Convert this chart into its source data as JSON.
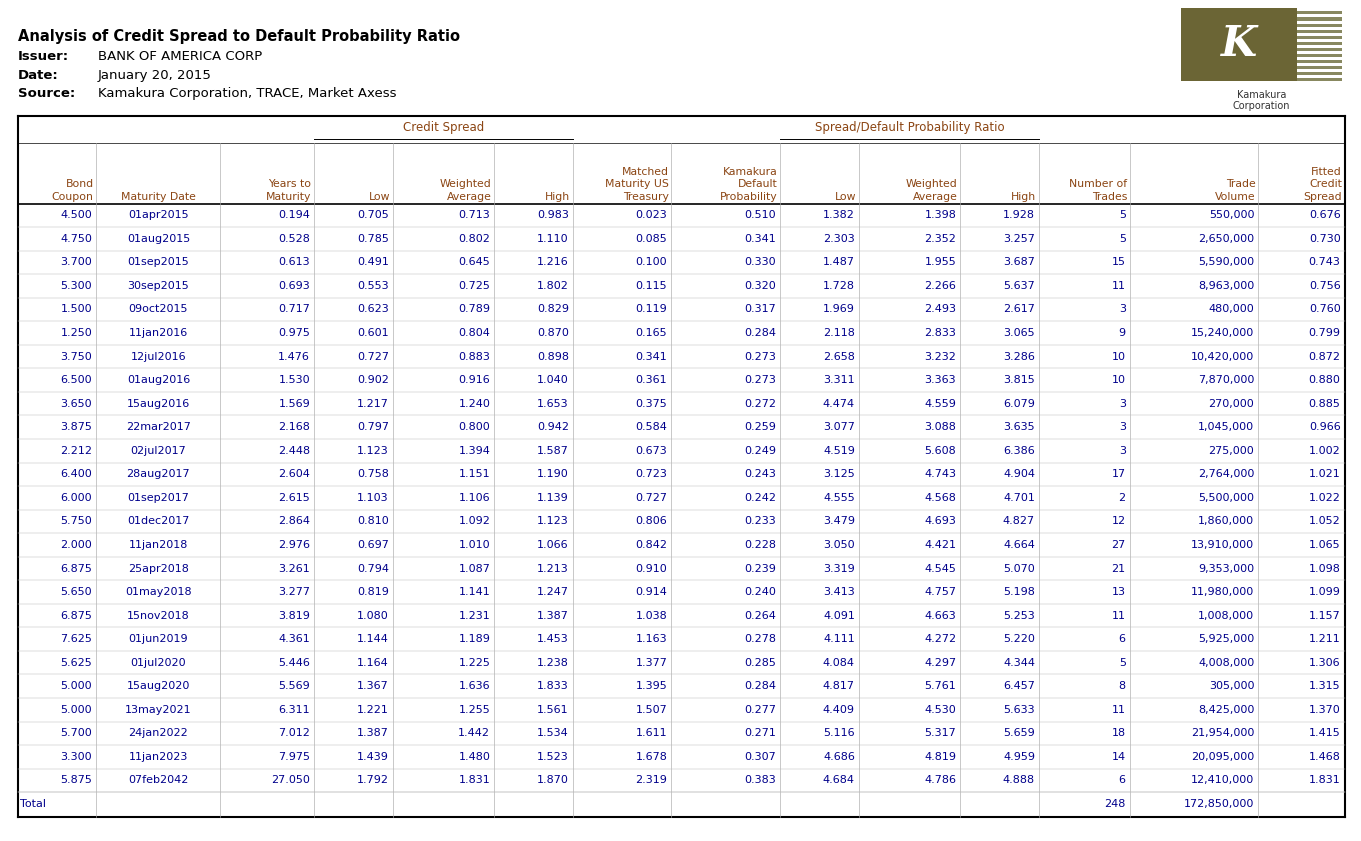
{
  "title": "Analysis of Credit Spread to Default Probability Ratio",
  "issuer_label": "Issuer:",
  "issuer_value": "BANK OF AMERICA CORP",
  "date_label": "Date:",
  "date_value": "January 20, 2015",
  "source_label": "Source:",
  "source_value": "Kamakura Corporation, TRACE, Market Axess",
  "header_group1": "Credit Spread",
  "header_group2": "Spread/Default Probability Ratio",
  "col_headers_line1": [
    "Bond",
    "",
    "Years to",
    "",
    "Weighted",
    "",
    "Matched",
    "Kamakura",
    "",
    "Weighted",
    "",
    "Number of",
    "Trade",
    "Fitted"
  ],
  "col_headers_line2": [
    "Coupon",
    "Maturity Date",
    "Maturity",
    "Low",
    "Average",
    "High",
    "Maturity US",
    "Default",
    "Low",
    "Average",
    "High",
    "Trades",
    "Volume",
    "Credit"
  ],
  "col_headers_line3": [
    "",
    "",
    "",
    "",
    "",
    "",
    "Treasury",
    "Probability",
    "",
    "",
    "",
    "",
    "",
    "Spread"
  ],
  "rows": [
    [
      "4.500",
      "01apr2015",
      "0.194",
      "0.705",
      "0.713",
      "0.983",
      "0.023",
      "0.510",
      "1.382",
      "1.398",
      "1.928",
      "5",
      "550,000",
      "0.676"
    ],
    [
      "4.750",
      "01aug2015",
      "0.528",
      "0.785",
      "0.802",
      "1.110",
      "0.085",
      "0.341",
      "2.303",
      "2.352",
      "3.257",
      "5",
      "2,650,000",
      "0.730"
    ],
    [
      "3.700",
      "01sep2015",
      "0.613",
      "0.491",
      "0.645",
      "1.216",
      "0.100",
      "0.330",
      "1.487",
      "1.955",
      "3.687",
      "15",
      "5,590,000",
      "0.743"
    ],
    [
      "5.300",
      "30sep2015",
      "0.693",
      "0.553",
      "0.725",
      "1.802",
      "0.115",
      "0.320",
      "1.728",
      "2.266",
      "5.637",
      "11",
      "8,963,000",
      "0.756"
    ],
    [
      "1.500",
      "09oct2015",
      "0.717",
      "0.623",
      "0.789",
      "0.829",
      "0.119",
      "0.317",
      "1.969",
      "2.493",
      "2.617",
      "3",
      "480,000",
      "0.760"
    ],
    [
      "1.250",
      "11jan2016",
      "0.975",
      "0.601",
      "0.804",
      "0.870",
      "0.165",
      "0.284",
      "2.118",
      "2.833",
      "3.065",
      "9",
      "15,240,000",
      "0.799"
    ],
    [
      "3.750",
      "12jul2016",
      "1.476",
      "0.727",
      "0.883",
      "0.898",
      "0.341",
      "0.273",
      "2.658",
      "3.232",
      "3.286",
      "10",
      "10,420,000",
      "0.872"
    ],
    [
      "6.500",
      "01aug2016",
      "1.530",
      "0.902",
      "0.916",
      "1.040",
      "0.361",
      "0.273",
      "3.311",
      "3.363",
      "3.815",
      "10",
      "7,870,000",
      "0.880"
    ],
    [
      "3.650",
      "15aug2016",
      "1.569",
      "1.217",
      "1.240",
      "1.653",
      "0.375",
      "0.272",
      "4.474",
      "4.559",
      "6.079",
      "3",
      "270,000",
      "0.885"
    ],
    [
      "3.875",
      "22mar2017",
      "2.168",
      "0.797",
      "0.800",
      "0.942",
      "0.584",
      "0.259",
      "3.077",
      "3.088",
      "3.635",
      "3",
      "1,045,000",
      "0.966"
    ],
    [
      "2.212",
      "02jul2017",
      "2.448",
      "1.123",
      "1.394",
      "1.587",
      "0.673",
      "0.249",
      "4.519",
      "5.608",
      "6.386",
      "3",
      "275,000",
      "1.002"
    ],
    [
      "6.400",
      "28aug2017",
      "2.604",
      "0.758",
      "1.151",
      "1.190",
      "0.723",
      "0.243",
      "3.125",
      "4.743",
      "4.904",
      "17",
      "2,764,000",
      "1.021"
    ],
    [
      "6.000",
      "01sep2017",
      "2.615",
      "1.103",
      "1.106",
      "1.139",
      "0.727",
      "0.242",
      "4.555",
      "4.568",
      "4.701",
      "2",
      "5,500,000",
      "1.022"
    ],
    [
      "5.750",
      "01dec2017",
      "2.864",
      "0.810",
      "1.092",
      "1.123",
      "0.806",
      "0.233",
      "3.479",
      "4.693",
      "4.827",
      "12",
      "1,860,000",
      "1.052"
    ],
    [
      "2.000",
      "11jan2018",
      "2.976",
      "0.697",
      "1.010",
      "1.066",
      "0.842",
      "0.228",
      "3.050",
      "4.421",
      "4.664",
      "27",
      "13,910,000",
      "1.065"
    ],
    [
      "6.875",
      "25apr2018",
      "3.261",
      "0.794",
      "1.087",
      "1.213",
      "0.910",
      "0.239",
      "3.319",
      "4.545",
      "5.070",
      "21",
      "9,353,000",
      "1.098"
    ],
    [
      "5.650",
      "01may2018",
      "3.277",
      "0.819",
      "1.141",
      "1.247",
      "0.914",
      "0.240",
      "3.413",
      "4.757",
      "5.198",
      "13",
      "11,980,000",
      "1.099"
    ],
    [
      "6.875",
      "15nov2018",
      "3.819",
      "1.080",
      "1.231",
      "1.387",
      "1.038",
      "0.264",
      "4.091",
      "4.663",
      "5.253",
      "11",
      "1,008,000",
      "1.157"
    ],
    [
      "7.625",
      "01jun2019",
      "4.361",
      "1.144",
      "1.189",
      "1.453",
      "1.163",
      "0.278",
      "4.111",
      "4.272",
      "5.220",
      "6",
      "5,925,000",
      "1.211"
    ],
    [
      "5.625",
      "01jul2020",
      "5.446",
      "1.164",
      "1.225",
      "1.238",
      "1.377",
      "0.285",
      "4.084",
      "4.297",
      "4.344",
      "5",
      "4,008,000",
      "1.306"
    ],
    [
      "5.000",
      "15aug2020",
      "5.569",
      "1.367",
      "1.636",
      "1.833",
      "1.395",
      "0.284",
      "4.817",
      "5.761",
      "6.457",
      "8",
      "305,000",
      "1.315"
    ],
    [
      "5.000",
      "13may2021",
      "6.311",
      "1.221",
      "1.255",
      "1.561",
      "1.507",
      "0.277",
      "4.409",
      "4.530",
      "5.633",
      "11",
      "8,425,000",
      "1.370"
    ],
    [
      "5.700",
      "24jan2022",
      "7.012",
      "1.387",
      "1.442",
      "1.534",
      "1.611",
      "0.271",
      "5.116",
      "5.317",
      "5.659",
      "18",
      "21,954,000",
      "1.415"
    ],
    [
      "3.300",
      "11jan2023",
      "7.975",
      "1.439",
      "1.480",
      "1.523",
      "1.678",
      "0.307",
      "4.686",
      "4.819",
      "4.959",
      "14",
      "20,095,000",
      "1.468"
    ],
    [
      "5.875",
      "07feb2042",
      "27.050",
      "1.792",
      "1.831",
      "1.870",
      "2.319",
      "0.383",
      "4.684",
      "4.786",
      "4.888",
      "6",
      "12,410,000",
      "1.831"
    ]
  ],
  "total_label": "Total",
  "total_trades": "248",
  "total_volume": "172,850,000",
  "bg_color": "#ffffff",
  "header_text_color": "#8B4513",
  "data_text_color": "#00008B",
  "title_color": "#000000",
  "col_aligns": [
    "right",
    "center",
    "right",
    "right",
    "right",
    "right",
    "right",
    "right",
    "right",
    "right",
    "right",
    "right",
    "right",
    "right"
  ]
}
